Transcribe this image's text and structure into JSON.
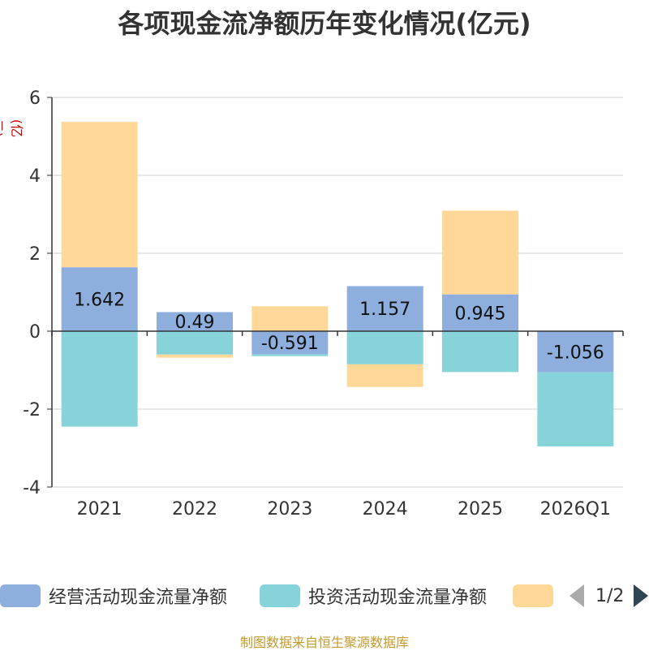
{
  "chart_data": {
    "type": "bar",
    "stacked": true,
    "title": "各项现金流净额历年变化情况(亿元)",
    "ylabel": "(亿元)",
    "categories": [
      "2021",
      "2022",
      "2023",
      "2024",
      "2025",
      "2026Q1"
    ],
    "ylim": [
      -4,
      6
    ],
    "yticks": [
      -4,
      -2,
      0,
      2,
      4,
      6
    ],
    "grid": true,
    "series": [
      {
        "name": "经营活动现金流量净额",
        "color": "#8eaedd",
        "values": [
          1.642,
          0.49,
          -0.591,
          1.157,
          0.945,
          -1.056
        ],
        "labels": [
          "1.642",
          "0.49",
          "-0.591",
          "1.157",
          "0.945",
          "-1.056"
        ]
      },
      {
        "name": "投资活动现金流量净额",
        "color": "#86d4d9",
        "values": [
          -2.45,
          -0.6,
          -0.05,
          -0.85,
          -1.05,
          -1.9
        ]
      },
      {
        "name": "",
        "color": "#ffd898",
        "values": [
          3.73,
          -0.08,
          0.64,
          -0.58,
          2.15,
          0
        ]
      }
    ]
  },
  "legend": {
    "page": "1/2"
  },
  "source": "制图数据来自恒生聚源数据库"
}
